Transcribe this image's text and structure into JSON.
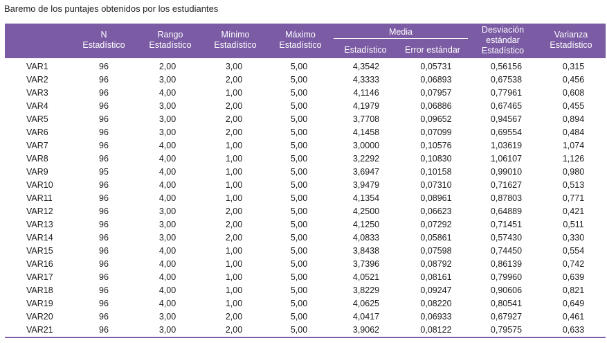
{
  "caption": "Baremo de los puntajes obtenidos por los estudiantes",
  "header": {
    "n": "N",
    "n_sub": "Estadístico",
    "rango": "Rango",
    "rango_sub": "Estadístico",
    "minimo": "Mínimo",
    "minimo_sub": "Estadístico",
    "maximo": "Máximo",
    "maximo_sub": "Estadístico",
    "media": "Media",
    "media_est": "Estadístico",
    "media_err": "Error estándar",
    "desv_l1": "Desviación",
    "desv_l2": "estándar",
    "desv_l3": "Estadístico",
    "var_l1": "Varianza",
    "var_l2": "Estadístico"
  },
  "rows": [
    [
      "VAR1",
      "96",
      "2,00",
      "3,00",
      "5,00",
      "4,3542",
      "0,05731",
      "0,56156",
      "0,315"
    ],
    [
      "VAR2",
      "96",
      "3,00",
      "2,00",
      "5,00",
      "4,3333",
      "0,06893",
      "0,67538",
      "0,456"
    ],
    [
      "VAR3",
      "96",
      "4,00",
      "1,00",
      "5,00",
      "4,1146",
      "0,07957",
      "0,77961",
      "0,608"
    ],
    [
      "VAR4",
      "96",
      "3,00",
      "2,00",
      "5,00",
      "4,1979",
      "0,06886",
      "0,67465",
      "0,455"
    ],
    [
      "VAR5",
      "96",
      "3,00",
      "2,00",
      "5,00",
      "3,7708",
      "0,09652",
      "0,94567",
      "0,894"
    ],
    [
      "VAR6",
      "96",
      "3,00",
      "2,00",
      "5,00",
      "4,1458",
      "0,07099",
      "0,69554",
      "0,484"
    ],
    [
      "VAR7",
      "96",
      "4,00",
      "1,00",
      "5,00",
      "3,0000",
      "0,10576",
      "1,03619",
      "1,074"
    ],
    [
      "VAR8",
      "96",
      "4,00",
      "1,00",
      "5,00",
      "3,2292",
      "0,10830",
      "1,06107",
      "1,126"
    ],
    [
      "VAR9",
      "95",
      "4,00",
      "1,00",
      "5,00",
      "3,6947",
      "0,10158",
      "0,99010",
      "0,980"
    ],
    [
      "VAR10",
      "96",
      "4,00",
      "1,00",
      "5,00",
      "3,9479",
      "0,07310",
      "0,71627",
      "0,513"
    ],
    [
      "VAR11",
      "96",
      "4,00",
      "1,00",
      "5,00",
      "4,1354",
      "0,08961",
      "0,87803",
      "0,771"
    ],
    [
      "VAR12",
      "96",
      "3,00",
      "2,00",
      "5,00",
      "4,2500",
      "0,06623",
      "0,64889",
      "0,421"
    ],
    [
      "VAR13",
      "96",
      "3,00",
      "2,00",
      "5,00",
      "4,1250",
      "0,07292",
      "0,71451",
      "0,511"
    ],
    [
      "VAR14",
      "96",
      "3,00",
      "2,00",
      "5,00",
      "4,0833",
      "0,05861",
      "0,57430",
      "0,330"
    ],
    [
      "VAR15",
      "96",
      "4,00",
      "1,00",
      "5,00",
      "3,8438",
      "0,07598",
      "0,74450",
      "0,554"
    ],
    [
      "VAR16",
      "96",
      "4,00",
      "1,00",
      "5,00",
      "3,7396",
      "0,08792",
      "0,86139",
      "0,742"
    ],
    [
      "VAR17",
      "96",
      "4,00",
      "1,00",
      "5,00",
      "4,0521",
      "0,08161",
      "0,79960",
      "0,639"
    ],
    [
      "VAR18",
      "96",
      "4,00",
      "1,00",
      "5,00",
      "3,8229",
      "0,09247",
      "0,90606",
      "0,821"
    ],
    [
      "VAR19",
      "96",
      "4,00",
      "1,00",
      "5,00",
      "4,0625",
      "0,08220",
      "0,80541",
      "0,649"
    ],
    [
      "VAR20",
      "96",
      "3,00",
      "2,00",
      "5,00",
      "4,0417",
      "0,06933",
      "0,67927",
      "0,461"
    ],
    [
      "VAR21",
      "96",
      "3,00",
      "2,00",
      "5,00",
      "3,9062",
      "0,08122",
      "0,79575",
      "0,633"
    ]
  ]
}
